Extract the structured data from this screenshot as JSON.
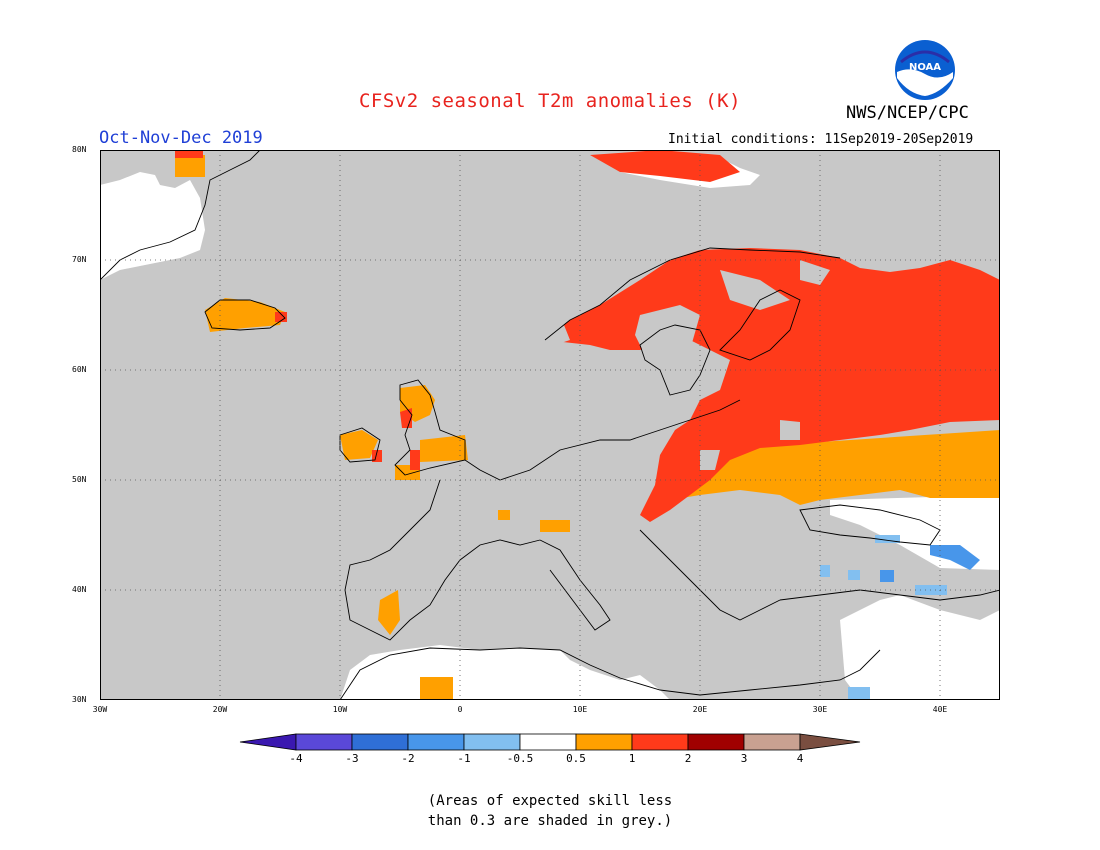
{
  "header": {
    "title": "CFSv2 seasonal T2m anomalies (K)",
    "season": "Oct-Nov-Dec 2019",
    "agency": "NWS/NCEP/CPC",
    "initial_conditions": "Initial conditions: 11Sep2019-20Sep2019",
    "logo_text": "NOAA"
  },
  "axes": {
    "lat_labels": [
      "80N",
      "70N",
      "60N",
      "50N",
      "40N",
      "30N"
    ],
    "lon_labels": [
      "30W",
      "20W",
      "10W",
      "0",
      "10E",
      "20E",
      "30E",
      "40E"
    ]
  },
  "colorbar": {
    "tick_labels": [
      "-4",
      "-3",
      "-2",
      "-1",
      "-0.5",
      "0.5",
      "1",
      "2",
      "3",
      "4"
    ],
    "colors": [
      "#3a18b0",
      "#5a48d8",
      "#2f6fd6",
      "#4896ea",
      "#82bff0",
      "#ffffff",
      "#ffa000",
      "#ff3a1a",
      "#a00000",
      "#c9a191",
      "#7a4e40"
    ]
  },
  "footnote": {
    "line1": "(Areas of expected skill less",
    "line2": "than 0.3 are shaded in grey.)"
  },
  "map_colors": {
    "grey": "#c8c8c8",
    "warm1": "#ffa000",
    "warm2": "#ff3a1a",
    "cool1": "#82bff0",
    "cool2": "#4896ea"
  }
}
